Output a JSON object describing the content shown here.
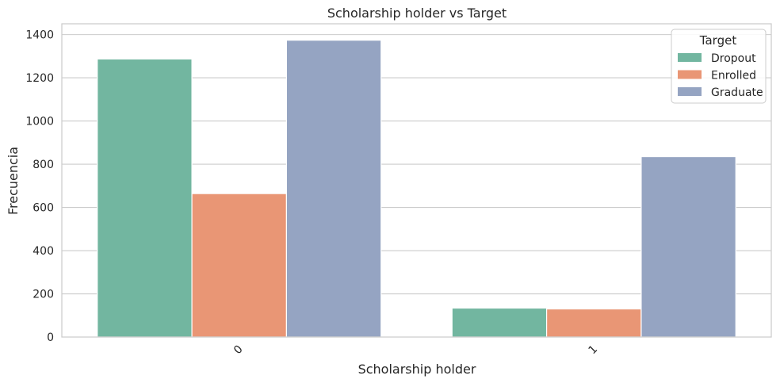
{
  "chart_data": {
    "type": "bar",
    "title": "Scholarship holder vs Target",
    "xlabel": "Scholarship holder",
    "ylabel": "Frecuencia",
    "categories": [
      "0",
      "1"
    ],
    "ylim": [
      0,
      1450
    ],
    "yticks": [
      0,
      200,
      400,
      600,
      800,
      1000,
      1200,
      1400
    ],
    "grid": "horizontal",
    "legend": {
      "title": "Target",
      "placement": "top-right"
    },
    "series": [
      {
        "name": "Dropout",
        "color": "#72b6a0",
        "values": [
          1287,
          134
        ]
      },
      {
        "name": "Enrolled",
        "color": "#e99675",
        "values": [
          664,
          130
        ]
      },
      {
        "name": "Graduate",
        "color": "#95a4c2",
        "values": [
          1374,
          835
        ]
      }
    ]
  }
}
